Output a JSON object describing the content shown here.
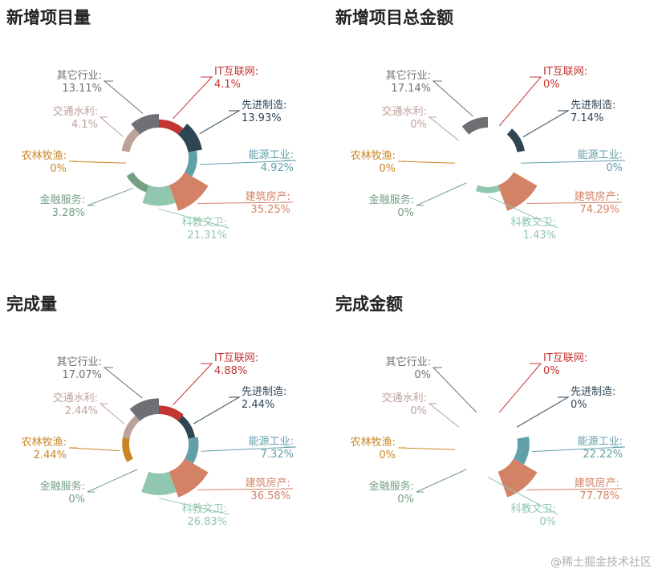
{
  "watermark": "@稀土掘金技术社区",
  "chart_data": [
    {
      "type": "pie",
      "title": "新增项目量",
      "categories": [
        "IT互联网",
        "先进制造",
        "能源工业",
        "建筑房产",
        "科教文卫",
        "金融服务",
        "农林牧渔",
        "交通水利",
        "其它行业"
      ],
      "values": [
        4.1,
        13.93,
        4.92,
        35.25,
        21.31,
        3.28,
        0,
        4.1,
        13.11
      ],
      "unit": "%"
    },
    {
      "type": "pie",
      "title": "新增项目总金额",
      "categories": [
        "IT互联网",
        "先进制造",
        "能源工业",
        "建筑房产",
        "科教文卫",
        "金融服务",
        "农林牧渔",
        "交通水利",
        "其它行业"
      ],
      "values": [
        0,
        7.14,
        0,
        74.29,
        1.43,
        0,
        0,
        0,
        17.14
      ],
      "unit": "%"
    },
    {
      "type": "pie",
      "title": "完成量",
      "categories": [
        "IT互联网",
        "先进制造",
        "能源工业",
        "建筑房产",
        "科教文卫",
        "金融服务",
        "农林牧渔",
        "交通水利",
        "其它行业"
      ],
      "values": [
        4.88,
        2.44,
        7.32,
        36.58,
        26.83,
        0,
        2.44,
        2.44,
        17.07
      ],
      "unit": "%"
    },
    {
      "type": "pie",
      "title": "完成金额",
      "categories": [
        "IT互联网",
        "先进制造",
        "能源工业",
        "建筑房产",
        "科教文卫",
        "金融服务",
        "农林牧渔",
        "交通水利",
        "其它行业"
      ],
      "values": [
        0,
        0,
        22.22,
        77.78,
        0,
        0,
        0,
        0,
        0
      ],
      "unit": "%"
    }
  ],
  "colors": [
    "#c23531",
    "#2f4554",
    "#61a0a8",
    "#d48265",
    "#91c7ae",
    "#749f83",
    "#ca8622",
    "#bda29a",
    "#6e7074"
  ]
}
